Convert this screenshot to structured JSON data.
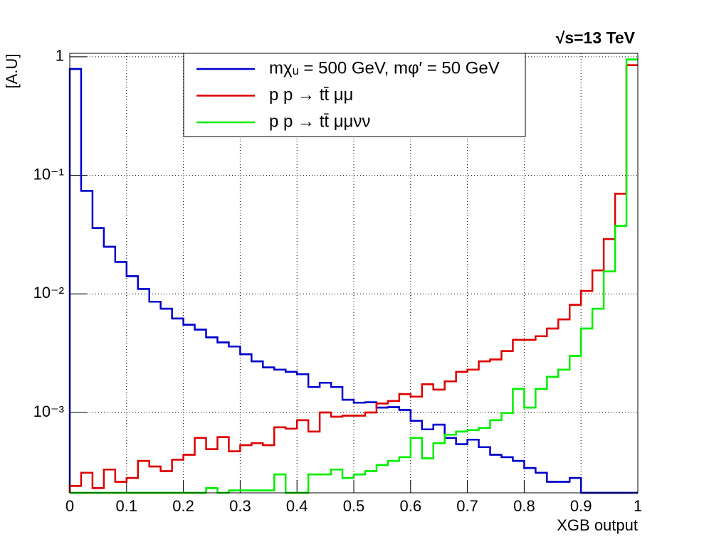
{
  "chart_data": {
    "type": "histogram",
    "title": "√s=13 TeV",
    "xlabel": "XGB output",
    "ylabel": "[A.U]",
    "log_y": true,
    "grid": true,
    "legend": "top",
    "bins": [
      0,
      0.02,
      0.04,
      0.06,
      0.08,
      0.1,
      0.12,
      0.14,
      0.16,
      0.18,
      0.2,
      0.22,
      0.24,
      0.26,
      0.28,
      0.3,
      0.32,
      0.34,
      0.36,
      0.38,
      0.4,
      0.42,
      0.44,
      0.46,
      0.48,
      0.5,
      0.52,
      0.54,
      0.56,
      0.58,
      0.6,
      0.62,
      0.64,
      0.66,
      0.68,
      0.7,
      0.72,
      0.74,
      0.76,
      0.78,
      0.8,
      0.82,
      0.84,
      0.86,
      0.88,
      0.9,
      0.92,
      0.94,
      0.96,
      0.98,
      1
    ],
    "xlim": [
      0,
      1
    ],
    "xticks": [
      0,
      0.1,
      0.2,
      0.3,
      0.4,
      0.5,
      0.6,
      0.7,
      0.8,
      0.9,
      1
    ],
    "ylim": [
      0.00021,
      1.07
    ],
    "yticks": [
      {
        "value": 0.001,
        "label": "10⁻³"
      },
      {
        "value": 0.01,
        "label": "10⁻²"
      },
      {
        "value": 0.1,
        "label": "10⁻¹"
      },
      1
    ],
    "series": [
      {
        "name": "mχᵤ = 500 GeV, mφ′ = 50 GeV",
        "color": "#0000cc",
        "values": [
          0.79,
          0.074,
          0.036,
          0.025,
          0.0186,
          0.0141,
          0.011,
          0.0086,
          0.0075,
          0.0062,
          0.0055,
          0.005,
          0.0043,
          0.0039,
          0.0036,
          0.0031,
          0.0027,
          0.0024,
          0.0023,
          0.0022,
          0.0021,
          0.00164,
          0.00178,
          0.00164,
          0.00128,
          0.00121,
          0.00122,
          0.0011,
          0.00111,
          0.00105,
          0.00085,
          0.00072,
          0.00079,
          0.00061,
          0.00054,
          0.00059,
          0.00051,
          0.00044,
          0.00042,
          0.00039,
          0.00034,
          0.00031,
          0.00026,
          0.00026,
          0.00028,
          0,
          0,
          0,
          0,
          0
        ]
      },
      {
        "name": "p p → tt̄ μμ",
        "color": "#dd0000",
        "values": [
          0.00024,
          0.00031,
          0.00023,
          0.00033,
          0.00026,
          0.00028,
          0.00039,
          0.00035,
          0.00032,
          0.0004,
          0.00044,
          0.00061,
          0.00049,
          0.00062,
          0.00047,
          0.00053,
          0.00055,
          0.00053,
          0.00075,
          0.00073,
          0.00086,
          0.00069,
          0.001,
          0.00092,
          0.00094,
          0.00094,
          0.001,
          0.00119,
          0.00125,
          0.00143,
          0.00136,
          0.00173,
          0.00156,
          0.00183,
          0.0022,
          0.0023,
          0.0027,
          0.0028,
          0.0033,
          0.0041,
          0.0041,
          0.0044,
          0.0051,
          0.0061,
          0.0081,
          0.0106,
          0.0158,
          0.029,
          0.07,
          0.85
        ]
      },
      {
        "name": "p p → tt̄ μμνν",
        "color": "#00ee00",
        "values": [
          0,
          0,
          0,
          0,
          0,
          0,
          0,
          0,
          0,
          0,
          0,
          0,
          0.00023,
          0,
          0.00022,
          0.00022,
          0.00022,
          0.00022,
          0.0003,
          0,
          0,
          0.0003,
          0.0003,
          0.00033,
          0.00028,
          0.0003,
          0.00032,
          0.00036,
          0.00039,
          0.00042,
          0.00061,
          0.00041,
          0.00055,
          0.00065,
          0.00069,
          0.00071,
          0.00074,
          0.00086,
          0.00099,
          0.00158,
          0.0011,
          0.00158,
          0.002,
          0.0023,
          0.003,
          0.0051,
          0.0075,
          0.0155,
          0.0375,
          0.95
        ]
      }
    ]
  }
}
